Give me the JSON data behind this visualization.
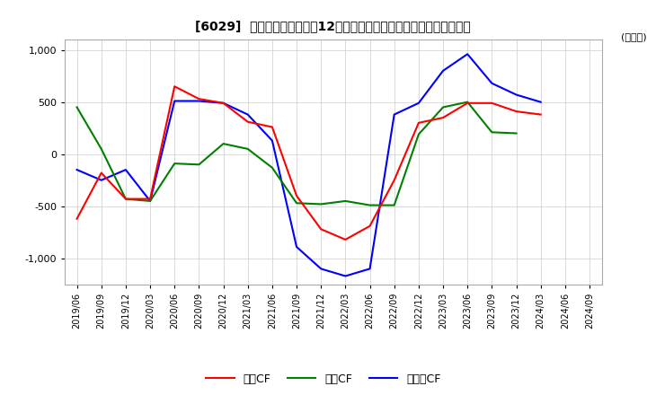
{
  "title": "[6029]  キャッシュフローの12か月移動合計の対前年同期増減額の推移",
  "ylabel": "(百万円)",
  "ylim": [
    -1250,
    1100
  ],
  "yticks": [
    -1000,
    -500,
    0,
    500,
    1000
  ],
  "line_colors": {
    "営業CF": "#ff0000",
    "投資CF": "#008000",
    "フリーCF": "#0000ff"
  },
  "dates": [
    "2019/06",
    "2019/09",
    "2019/12",
    "2020/03",
    "2020/06",
    "2020/09",
    "2020/12",
    "2021/03",
    "2021/06",
    "2021/09",
    "2021/12",
    "2022/03",
    "2022/06",
    "2022/09",
    "2022/12",
    "2023/03",
    "2023/06",
    "2023/09",
    "2023/12",
    "2024/03",
    "2024/06",
    "2024/09"
  ],
  "営業CF": [
    -620,
    -180,
    -430,
    -430,
    650,
    530,
    490,
    310,
    260,
    -400,
    -720,
    -820,
    -690,
    -250,
    300,
    350,
    490,
    490,
    410,
    380,
    null,
    null
  ],
  "投資CF": [
    450,
    50,
    -430,
    -450,
    -90,
    -100,
    100,
    50,
    -130,
    -470,
    -480,
    -450,
    -490,
    -490,
    190,
    450,
    500,
    210,
    200,
    null,
    null,
    null
  ],
  "フリーCF": [
    -150,
    -250,
    -150,
    -450,
    510,
    510,
    490,
    380,
    130,
    -890,
    -1100,
    -1170,
    -1100,
    380,
    490,
    800,
    960,
    680,
    570,
    500,
    null,
    null
  ],
  "background_color": "#ffffff",
  "grid_color": "#cccccc",
  "legend_labels": [
    "営業CF",
    "投資CF",
    "フリーCF"
  ]
}
